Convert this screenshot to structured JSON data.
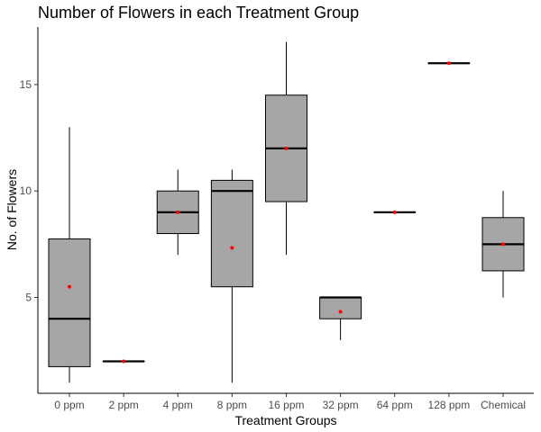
{
  "chart_data": {
    "type": "boxplot",
    "title": "Number of Flowers in each Treatment Group",
    "xlabel": "Treatment Groups",
    "ylabel": "No. of Flowers",
    "ylim": [
      0.5,
      17.7
    ],
    "yticks": [
      5,
      10,
      15
    ],
    "grid": false,
    "legend": "none",
    "colors": {
      "box_fill": "#a6a6a6",
      "box_stroke": "#000000",
      "mean_point": "#ff0000"
    },
    "groups": [
      {
        "category": "0 ppm",
        "min": 1,
        "q1": 1.75,
        "median": 4,
        "q3": 7.75,
        "max": 13,
        "mean": 5.5
      },
      {
        "category": "2 ppm",
        "min": 2,
        "q1": 2,
        "median": 2,
        "q3": 2,
        "max": 2,
        "mean": 2
      },
      {
        "category": "4 ppm",
        "min": 7,
        "q1": 8,
        "median": 9,
        "q3": 10,
        "max": 11,
        "mean": 9
      },
      {
        "category": "8 ppm",
        "min": 1,
        "q1": 5.5,
        "median": 10,
        "q3": 10.5,
        "max": 11,
        "mean": 7.33
      },
      {
        "category": "16 ppm",
        "min": 7,
        "q1": 9.5,
        "median": 12,
        "q3": 14.5,
        "max": 17,
        "mean": 12
      },
      {
        "category": "32 ppm",
        "min": 3,
        "q1": 4,
        "median": 5,
        "q3": 5,
        "max": 5,
        "mean": 4.33
      },
      {
        "category": "64 ppm",
        "min": 9,
        "q1": 9,
        "median": 9,
        "q3": 9,
        "max": 9,
        "mean": 9
      },
      {
        "category": "128 ppm",
        "min": 16,
        "q1": 16,
        "median": 16,
        "q3": 16,
        "max": 16,
        "mean": 16
      },
      {
        "category": "Chemical",
        "min": 5,
        "q1": 6.25,
        "median": 7.5,
        "q3": 8.75,
        "max": 10,
        "mean": 7.5
      }
    ]
  }
}
